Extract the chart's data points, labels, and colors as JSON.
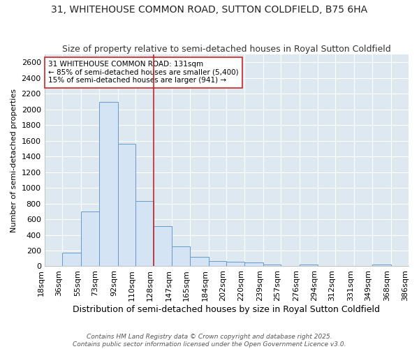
{
  "title": "31, WHITEHOUSE COMMON ROAD, SUTTON COLDFIELD, B75 6HA",
  "subtitle": "Size of property relative to semi-detached houses in Royal Sutton Coldfield",
  "xlabel": "Distribution of semi-detached houses by size in Royal Sutton Coldfield",
  "ylabel": "Number of semi-detached properties",
  "footer1": "Contains HM Land Registry data © Crown copyright and database right 2025.",
  "footer2": "Contains public sector information licensed under the Open Government Licence v3.0.",
  "annotation_line1": "31 WHITEHOUSE COMMON ROAD: 131sqm",
  "annotation_line2": "← 85% of semi-detached houses are smaller (5,400)",
  "annotation_line3": "15% of semi-detached houses are larger (941) →",
  "bar_color": "#d4e4f4",
  "bar_edge_color": "#6699cc",
  "vline_color": "#cc2222",
  "vline_x": 128,
  "fig_background": "#ffffff",
  "ax_background": "#dde8f0",
  "categories": [
    "18sqm",
    "36sqm",
    "55sqm",
    "73sqm",
    "92sqm",
    "110sqm",
    "128sqm",
    "147sqm",
    "165sqm",
    "184sqm",
    "202sqm",
    "220sqm",
    "239sqm",
    "257sqm",
    "276sqm",
    "294sqm",
    "312sqm",
    "331sqm",
    "349sqm",
    "368sqm",
    "386sqm"
  ],
  "bin_edges": [
    18,
    36,
    55,
    73,
    92,
    110,
    128,
    147,
    165,
    184,
    202,
    220,
    239,
    257,
    276,
    294,
    312,
    331,
    349,
    368,
    386
  ],
  "values": [
    0,
    175,
    700,
    2100,
    1560,
    830,
    510,
    250,
    120,
    70,
    60,
    50,
    20,
    0,
    20,
    0,
    0,
    0,
    25,
    0,
    0
  ],
  "ylim": [
    0,
    2700
  ],
  "yticks": [
    0,
    200,
    400,
    600,
    800,
    1000,
    1200,
    1400,
    1600,
    1800,
    2000,
    2200,
    2400,
    2600
  ],
  "grid_color": "#ffffff",
  "title_fontsize": 10,
  "subtitle_fontsize": 9,
  "xlabel_fontsize": 9,
  "ylabel_fontsize": 8,
  "tick_fontsize": 8,
  "annotation_fontsize": 7.5,
  "footer_fontsize": 6.5
}
